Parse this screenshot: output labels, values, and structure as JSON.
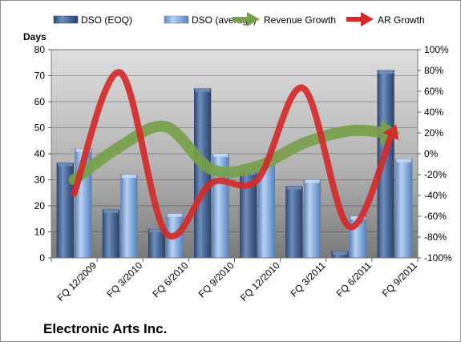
{
  "chart_data": {
    "type": "bar",
    "title": "Electronic Arts Inc.",
    "ylabel": "Days",
    "categories": [
      "FQ 12/2009",
      "FQ 3/2010",
      "FQ 6/2010",
      "FQ 9/2010",
      "FQ 12/2010",
      "FQ 3/2011",
      "FQ 6/2011",
      "FQ 9/2011"
    ],
    "ylim": [
      0,
      80
    ],
    "yticks": [
      "0",
      "10",
      "20",
      "30",
      "40",
      "50",
      "60",
      "70",
      "80"
    ],
    "y2lim": [
      -100,
      100
    ],
    "y2ticks": [
      "-100%",
      "-80%",
      "-60%",
      "-40%",
      "-20%",
      "0%",
      "20%",
      "40%",
      "60%",
      "80%",
      "100%"
    ],
    "series": [
      {
        "name": "DSO (EOQ)",
        "kind": "bar",
        "axis": "left",
        "color": "#4f6f9f",
        "values": [
          36.5,
          18.5,
          11,
          65,
          33,
          27.5,
          2.5,
          72
        ]
      },
      {
        "name": "DSO (average)",
        "kind": "bar",
        "axis": "left",
        "color": "#8fb4e3",
        "values": [
          42,
          32,
          17,
          40,
          37,
          30,
          16,
          38
        ]
      },
      {
        "name": "Revenue Growth",
        "kind": "line-arrow",
        "axis": "right",
        "color": "#77a04a",
        "values": [
          -25,
          7,
          26,
          -15,
          -12,
          10,
          22,
          20
        ]
      },
      {
        "name": "AR Growth",
        "kind": "line-arrow",
        "axis": "right",
        "color": "#d42a2a",
        "values": [
          -38,
          78,
          -76,
          -28,
          -25,
          63,
          -70,
          25
        ]
      }
    ],
    "grid": true,
    "legend_position": "top"
  },
  "colors": {
    "plot_background_top": "#d9d9d9",
    "plot_background_bottom": "#7f7f7f",
    "gridline": "#000000"
  }
}
